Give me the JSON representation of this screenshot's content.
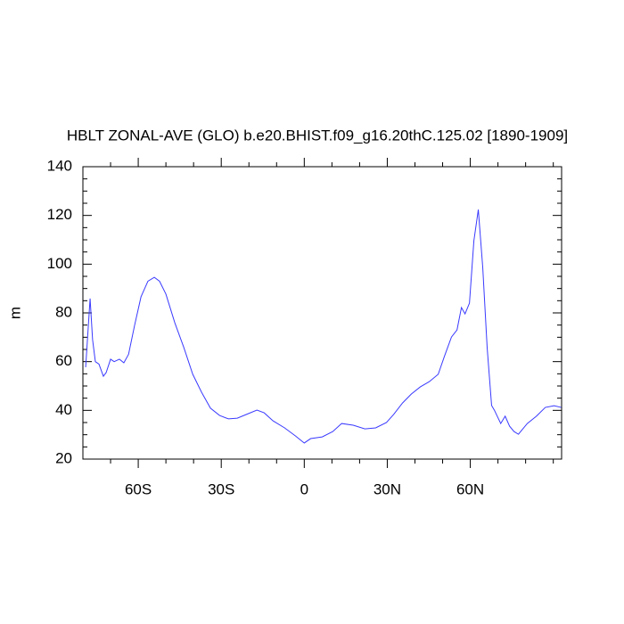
{
  "chart_data": {
    "type": "line",
    "title": "HBLT ZONAL-AVE (GLO) b.e20.BHIST.f09_g16.20thC.125.02 [1890-1909]",
    "ylabel": "m",
    "x": [
      -79,
      -77.4,
      -76.5,
      -75.5,
      -74.2,
      -72.6,
      -71.6,
      -70,
      -68.7,
      -66.8,
      -65.2,
      -63.5,
      -61.3,
      -59,
      -56.5,
      -54.2,
      -52.3,
      -50,
      -46.8,
      -43.5,
      -40.3,
      -37.1,
      -33.9,
      -30.6,
      -27.4,
      -24.2,
      -21,
      -17.1,
      -14.5,
      -11.3,
      -7.1,
      -3.2,
      0,
      2.3,
      6.5,
      10.3,
      13.5,
      17.7,
      21.9,
      25.8,
      29.7,
      32.3,
      35.5,
      38.7,
      41.9,
      45.2,
      48.4,
      50.6,
      53.2,
      55.2,
      56.8,
      58.1,
      59.7,
      61.3,
      62.9,
      64.5,
      66.1,
      67.7,
      68.7,
      71,
      72.6,
      74.2,
      75.8,
      77.4,
      80.6,
      83.9,
      87.1,
      90.3,
      92.9
    ],
    "series": [
      {
        "color": "#3a3aff",
        "values": [
          57.7,
          85.9,
          69,
          60,
          59,
          54,
          55.5,
          61,
          60,
          61,
          59.5,
          63,
          75,
          86.6,
          93,
          94.6,
          93,
          87.7,
          76,
          65.7,
          54.8,
          47.4,
          40.9,
          37.9,
          36.5,
          36.8,
          38.3,
          40.1,
          39,
          35.7,
          32.8,
          29.5,
          26.6,
          28.4,
          29.1,
          31.3,
          34.6,
          33.9,
          32.4,
          32.8,
          35,
          38.3,
          43,
          46.7,
          49.6,
          51.8,
          54.8,
          62,
          70.1,
          73,
          82.2,
          79.6,
          84,
          109.6,
          122.4,
          98.7,
          65.7,
          42,
          40.1,
          34.6,
          37.6,
          33.5,
          31.3,
          30.2,
          34.6,
          37.6,
          41.2,
          41.9,
          41.2
        ]
      }
    ],
    "xlim": [
      -80,
      93
    ],
    "xticks": [
      {
        "value": -60,
        "label": "60S"
      },
      {
        "value": -30,
        "label": "30S"
      },
      0,
      {
        "value": 30,
        "label": "30N"
      },
      {
        "value": 60,
        "label": "60N"
      }
    ],
    "xminorticks": [
      -70,
      -50,
      -40,
      -20,
      -10,
      10,
      20,
      40,
      50,
      70,
      80,
      90
    ],
    "ylim": [
      20,
      140
    ],
    "yticks": [
      20,
      40,
      60,
      80,
      100,
      120,
      140
    ],
    "yminorticks": [
      25,
      30,
      35,
      45,
      50,
      55,
      65,
      70,
      75,
      85,
      90,
      95,
      105,
      110,
      115,
      125,
      130,
      135
    ]
  }
}
